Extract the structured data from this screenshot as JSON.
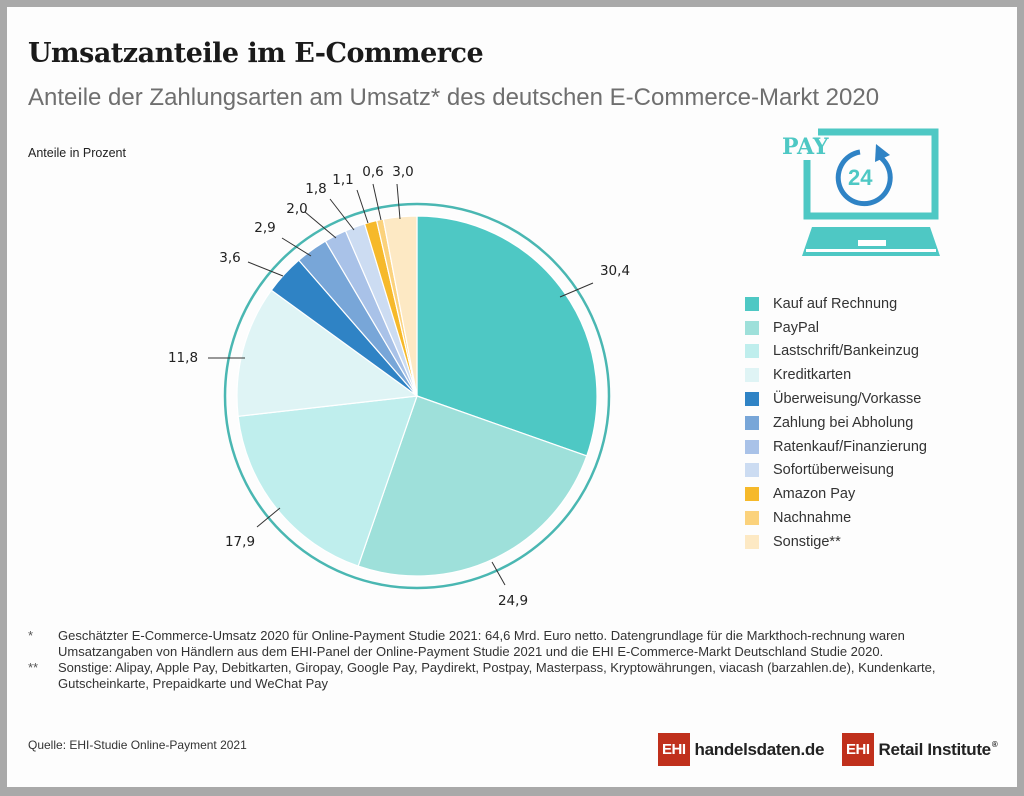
{
  "header": {
    "title": "Umsatzanteile im E-Commerce",
    "subtitle": "Anteile der Zahlungsarten am Umsatz* des deutschen E-Commerce-Markt 2020",
    "unit_label": "Anteile in Prozent"
  },
  "icon": {
    "name": "laptop-pay24-icon",
    "text_pay": "PAY",
    "text_24": "24"
  },
  "chart_data": {
    "type": "pie",
    "title": "Umsatzanteile im E-Commerce",
    "subtitle": "Anteile der Zahlungsarten am Umsatz* des deutschen E-Commerce-Markt 2020",
    "unit": "Prozent",
    "start": "12 o'clock, clockwise",
    "legend_position": "right",
    "slices": [
      {
        "label": "Kauf auf Rechnung",
        "value": 30.4,
        "display": "30,4",
        "color": "#4ec8c4"
      },
      {
        "label": "PayPal",
        "value": 24.9,
        "display": "24,9",
        "color": "#9ee0da"
      },
      {
        "label": "Lastschrift/Bankeinzug",
        "value": 17.9,
        "display": "17,9",
        "color": "#bfeeed"
      },
      {
        "label": "Kreditkarten",
        "value": 11.8,
        "display": "11,8",
        "color": "#dff4f5"
      },
      {
        "label": "Überweisung/Vorkasse",
        "value": 3.6,
        "display": "3,6",
        "color": "#2f83c5"
      },
      {
        "label": "Zahlung bei Abholung",
        "value": 2.9,
        "display": "2,9",
        "color": "#78a6d8"
      },
      {
        "label": "Ratenkauf/Finanzierung",
        "value": 2.0,
        "display": "2,0",
        "color": "#a9c2e8"
      },
      {
        "label": "Sofortüberweisung",
        "value": 1.8,
        "display": "1,8",
        "color": "#ccdcf2"
      },
      {
        "label": "Amazon Pay",
        "value": 1.1,
        "display": "1,1",
        "color": "#f6b92a"
      },
      {
        "label": "Nachnahme",
        "value": 0.6,
        "display": "0,6",
        "color": "#fbd27c"
      },
      {
        "label": "Sonstige**",
        "value": 3.0,
        "display": "3,0",
        "color": "#fde9c4"
      }
    ]
  },
  "footnotes": [
    {
      "mark": "*",
      "text": "Geschätzter E-Commerce-Umsatz 2020 für Online-Payment Studie 2021: 64,6 Mrd. Euro netto. Datengrundlage für die Markthoch-rechnung waren Umsatzangaben von Händlern aus dem EHI-Panel der Online-Payment Studie 2021 und die EHI E-Commerce-Markt Deutschland Studie 2020."
    },
    {
      "mark": "**",
      "text": "Sonstige: Alipay, Apple Pay, Debitkarten, Giropay, Google Pay, Paydirekt, Postpay, Masterpass, Kryptowährungen, viacash (barzahlen.de), Kundenkarte, Gutscheinkarte, Prepaidkarte und WeChat Pay"
    }
  ],
  "source": "Quelle: EHI-Studie Online-Payment 2021",
  "logos": [
    {
      "badge": "EHI",
      "text": "handelsdaten.de"
    },
    {
      "badge": "EHI",
      "text": "Retail Institute",
      "reg": "®"
    }
  ]
}
